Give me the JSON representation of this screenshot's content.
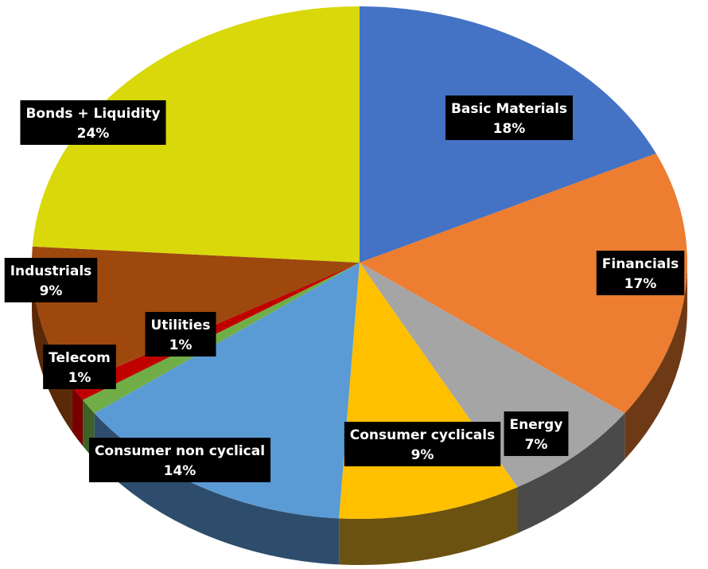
{
  "chart_data": {
    "type": "pie",
    "title": "",
    "series": [
      {
        "label": "Basic Materials",
        "value": 18,
        "value_text": "18%",
        "color": "#4472C4",
        "side_color": "#2E4E86"
      },
      {
        "label": "Financials",
        "value": 17,
        "value_text": "17%",
        "color": "#ED7D31",
        "side_color": "#6E3A16"
      },
      {
        "label": "Energy",
        "value": 7,
        "value_text": "7%",
        "color": "#A5A5A5",
        "side_color": "#4A4A4A"
      },
      {
        "label": "Consumer cyclicals",
        "value": 9,
        "value_text": "9%",
        "color": "#FFC000",
        "side_color": "#6B5210"
      },
      {
        "label": "Consumer non cyclical",
        "value": 14,
        "value_text": "14%",
        "color": "#5B9BD5",
        "side_color": "#2E4D6C"
      },
      {
        "label": "Utilities",
        "value": 1,
        "value_text": "1%",
        "color": "#70AD47",
        "side_color": "#3E6127"
      },
      {
        "label": "Telecom",
        "value": 1,
        "value_text": "1%",
        "color": "#C00000",
        "side_color": "#7A0000"
      },
      {
        "label": "Industrials",
        "value": 9,
        "value_text": "9%",
        "color": "#9E480E",
        "side_color": "#5A2908"
      },
      {
        "label": "Bonds + Liquidity",
        "value": 24,
        "value_text": "24%",
        "color": "#D9D80B",
        "side_color": "#8A8906"
      }
    ],
    "start": "top",
    "direction": "clockwise",
    "style": "3d-pie",
    "legend": "none"
  }
}
